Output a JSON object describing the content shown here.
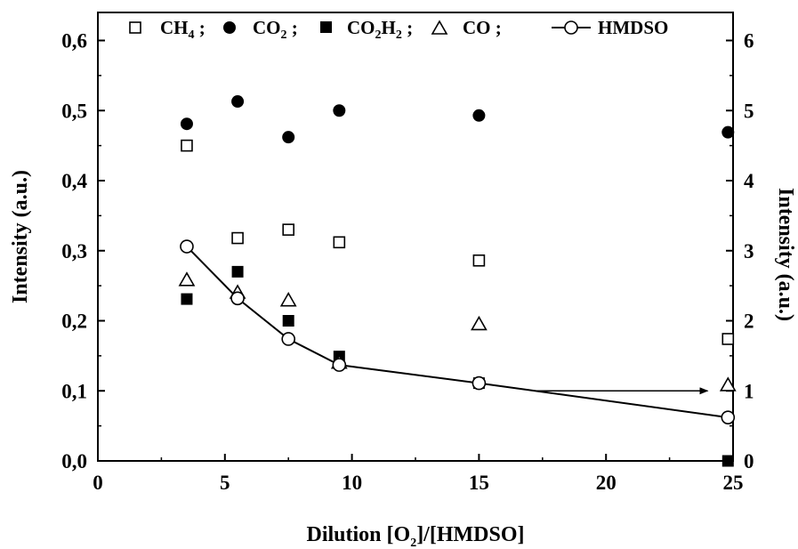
{
  "chart_data": {
    "type": "scatter",
    "xlabel": {
      "main": "Dilution [O",
      "sub": "2",
      "rest": "]/[HMDSO]"
    },
    "ylabel_left": "Intensity (a.u.)",
    "ylabel_right": "Intensity (a.u.)",
    "xlim": [
      0,
      25
    ],
    "ylim_left": [
      0,
      0.64
    ],
    "ylim_right": [
      0,
      6.4
    ],
    "x_ticks": [
      {
        "value": 0,
        "label": "0"
      },
      {
        "value": 5,
        "label": "5"
      },
      {
        "value": 10,
        "label": "10"
      },
      {
        "value": 15,
        "label": "15"
      },
      {
        "value": 20,
        "label": "20"
      },
      {
        "value": 25,
        "label": "25"
      }
    ],
    "y_ticks_left": [
      {
        "value": 0.0,
        "label": "0,0"
      },
      {
        "value": 0.1,
        "label": "0,1"
      },
      {
        "value": 0.2,
        "label": "0,2"
      },
      {
        "value": 0.3,
        "label": "0,3"
      },
      {
        "value": 0.4,
        "label": "0,4"
      },
      {
        "value": 0.5,
        "label": "0,5"
      },
      {
        "value": 0.6,
        "label": "0,6"
      }
    ],
    "y_ticks_right": [
      {
        "value": 0,
        "label": "0"
      },
      {
        "value": 1,
        "label": "1"
      },
      {
        "value": 2,
        "label": "2"
      },
      {
        "value": 3,
        "label": "3"
      },
      {
        "value": 4,
        "label": "4"
      },
      {
        "value": 5,
        "label": "5"
      },
      {
        "value": 6,
        "label": "6"
      }
    ],
    "series": [
      {
        "name": "CH4",
        "legend_main": "CH",
        "legend_sub": "4",
        "legend_tail": ";",
        "marker": "open-square",
        "axis": "left",
        "x": [
          3.5,
          5.5,
          7.5,
          9.5,
          15,
          24.8
        ],
        "y": [
          0.45,
          0.318,
          0.33,
          0.312,
          0.286,
          0.174
        ]
      },
      {
        "name": "CO2",
        "legend_main": "CO",
        "legend_sub": "2",
        "legend_tail": ";",
        "marker": "filled-circle",
        "axis": "left",
        "x": [
          3.5,
          5.5,
          7.5,
          9.5,
          15,
          24.8
        ],
        "y": [
          0.481,
          0.513,
          0.462,
          0.5,
          0.493,
          0.469
        ]
      },
      {
        "name": "CO2H2",
        "legend_main": "CO",
        "legend_sub": "2",
        "legend_main2": "H",
        "legend_sub2": "2",
        "legend_tail": ";",
        "marker": "filled-square",
        "axis": "left",
        "x": [
          3.5,
          5.5,
          7.5,
          9.5,
          15,
          24.8
        ],
        "y": [
          0.231,
          0.27,
          0.2,
          0.149,
          0.111,
          0.0
        ]
      },
      {
        "name": "CO",
        "legend_main": "CO",
        "legend_tail": ";",
        "marker": "open-triangle",
        "axis": "left",
        "x": [
          3.5,
          5.5,
          7.5,
          9.5,
          15,
          24.8
        ],
        "y": [
          0.258,
          0.24,
          0.229,
          0.14,
          0.195,
          0.108
        ]
      },
      {
        "name": "HMDSO",
        "legend_main": "HMDSO",
        "marker": "open-circle",
        "line": true,
        "axis": "right",
        "x": [
          3.5,
          5.5,
          7.5,
          9.5,
          15,
          24.8
        ],
        "y": [
          3.06,
          2.32,
          1.74,
          1.37,
          1.11,
          0.62
        ]
      }
    ],
    "annotations": [
      {
        "type": "arrow",
        "direction": "right",
        "from": [
          17.2,
          1.0
        ],
        "to": [
          24.0,
          1.0
        ],
        "axis": "right"
      }
    ]
  }
}
